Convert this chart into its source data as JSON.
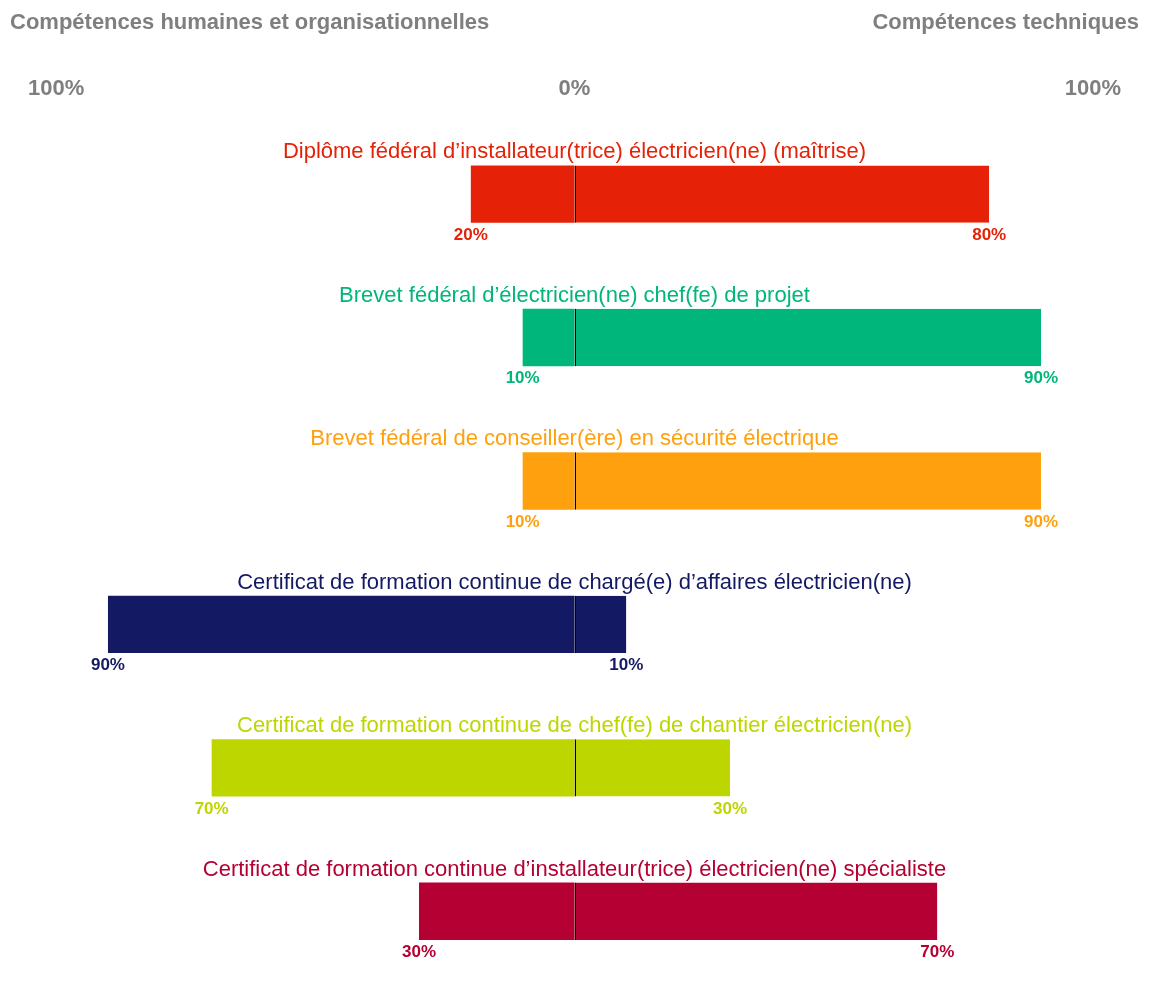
{
  "chart_data": {
    "type": "bar",
    "orientation": "horizontal",
    "categories": [
      "Diplôme fédéral d’installateur(trice) électricien(ne) (maîtrise)",
      "Brevet fédéral d’électricien(ne) chef(fe) de projet",
      "Brevet fédéral de conseiller(ère) en sécurité électrique",
      "Certificat de formation continue de chargé(e) d’affaires électricien(ne)",
      "Certificat de formation continue de chef(fe) de chantier électricien(ne)",
      "Certificat de formation continue d’installateur(trice) électricien(ne) spécialiste"
    ],
    "series": [
      {
        "values": [
          20,
          10,
          10,
          90,
          70,
          30
        ],
        "base": [
          -20,
          -10,
          -10,
          -90,
          -70,
          -30
        ],
        "value_labels": [
          "20%",
          "10%",
          "10%",
          "90%",
          "70%",
          "30%"
        ],
        "colors": [
          "#e52207",
          "#00b67a",
          "#ffa00f",
          "#131a63",
          "#bed600",
          "#b40033"
        ]
      },
      {
        "values": [
          80,
          90,
          90,
          10,
          30,
          70
        ],
        "value_labels": [
          "80%",
          "90%",
          "90%",
          "10%",
          "30%",
          "70%"
        ],
        "colors": [
          "#e52207",
          "#00b67a",
          "#ffa00f",
          "#131a63",
          "#bed600",
          "#b40033"
        ]
      }
    ],
    "xlim": [
      -100,
      100
    ],
    "xticks": [
      {
        "value": -100,
        "label": "100%"
      },
      {
        "value": 0,
        "label": "0%"
      },
      {
        "value": 100,
        "label": "100%"
      }
    ],
    "annotations": [
      "Compétences humaines et organisationnelles",
      "Compétences techniques"
    ],
    "grid": false,
    "legend": false
  }
}
